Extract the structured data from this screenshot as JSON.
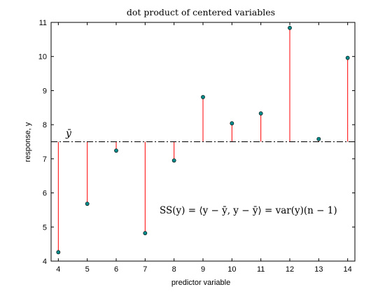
{
  "chart_data": {
    "type": "scatter",
    "title": "dot product of centered variables",
    "xlabel": "predictor variable",
    "ylabel": "response, y",
    "xlim": [
      3.75,
      14.25
    ],
    "ylim": [
      4,
      11
    ],
    "xticks": [
      4,
      5,
      6,
      7,
      8,
      9,
      10,
      11,
      12,
      13,
      14
    ],
    "yticks": [
      4,
      5,
      6,
      7,
      8,
      9,
      10,
      11
    ],
    "mean_y": 7.5,
    "mean_label": "ȳ",
    "annotation": "SS(y) = ⟨y − ȳ, y − ȳ⟩ = var(y)(n − 1)",
    "grid": false,
    "marker_color": "#008b8b",
    "stem_color": "#ff0000",
    "mean_line_color": "#000000",
    "points": [
      {
        "x": 4,
        "y": 4.26
      },
      {
        "x": 5,
        "y": 5.68
      },
      {
        "x": 6,
        "y": 7.24
      },
      {
        "x": 7,
        "y": 4.82
      },
      {
        "x": 8,
        "y": 6.95
      },
      {
        "x": 9,
        "y": 8.81
      },
      {
        "x": 10,
        "y": 8.04
      },
      {
        "x": 11,
        "y": 8.33
      },
      {
        "x": 12,
        "y": 10.84
      },
      {
        "x": 13,
        "y": 7.58
      },
      {
        "x": 14,
        "y": 9.96
      }
    ]
  }
}
